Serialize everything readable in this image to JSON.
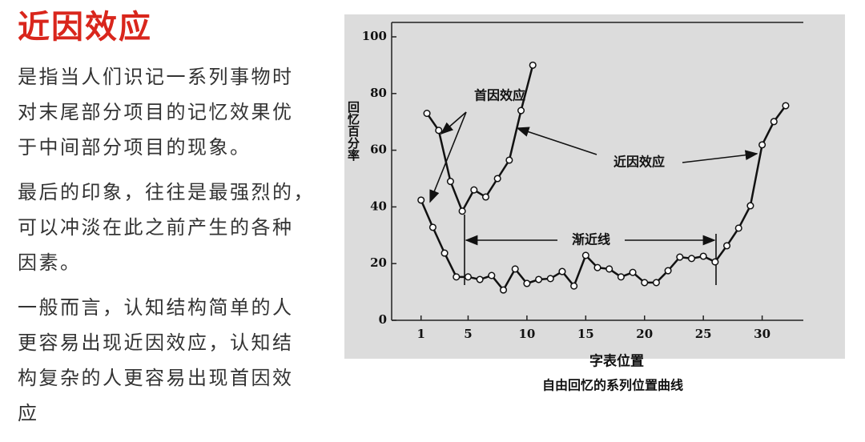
{
  "header": {
    "title": "近因效应"
  },
  "paragraphs": [
    [
      "是指当人们识记一系列事物时",
      "对末尾部分项目的记忆效果优",
      "于中间部分项目的现象。"
    ],
    [
      "最后的印象，往往是最强烈的，",
      "可以冲淡在此之前产生的各种",
      "因素。"
    ],
    [
      "一般而言，认知结构简单的人",
      "更容易出现近因效应，认知结",
      "构复杂的人更容易出现首因效",
      "应"
    ]
  ],
  "chart_data": {
    "type": "line",
    "title": "自由回忆的系列位置曲线",
    "x_label": "字表位置",
    "y_label": "回忆百分率",
    "annotations": [
      "首因效应",
      "近因效应",
      "渐近线"
    ],
    "xlim": [
      -1.5,
      33.5
    ],
    "xticks": [
      1,
      5,
      10,
      15,
      20,
      25,
      30
    ],
    "ylim": [
      0,
      100
    ],
    "yticks": [
      0,
      20,
      40,
      60,
      80,
      100
    ],
    "series": [
      {
        "color": "#111111",
        "x": [
          1.5,
          2.5,
          3.5,
          4.5,
          5.5,
          6.5,
          7.5,
          8.5,
          9.5,
          10.5
        ],
        "values": [
          73,
          67,
          49,
          38.5,
          46,
          43.5,
          50,
          56.5,
          74,
          90
        ]
      },
      {
        "color": "#111111",
        "x": [
          1,
          2,
          3,
          4,
          5,
          6,
          7,
          8,
          9,
          10,
          11,
          12,
          13,
          14,
          15,
          16,
          17,
          18,
          19,
          20,
          21,
          22,
          23,
          24,
          25,
          26,
          27,
          28,
          29,
          30,
          31,
          32
        ],
        "values": [
          42.4,
          32.8,
          23.7,
          15.3,
          15.3,
          14.4,
          15.8,
          10.7,
          18.1,
          13,
          14.4,
          14.7,
          17.2,
          12.1,
          22.9,
          18.6,
          18.1,
          15.3,
          16.9,
          13.3,
          13.3,
          17.5,
          22.3,
          21.8,
          22.6,
          20.6,
          26.3,
          32.5,
          40.4,
          61.9,
          70.1,
          75.7
        ]
      }
    ]
  }
}
